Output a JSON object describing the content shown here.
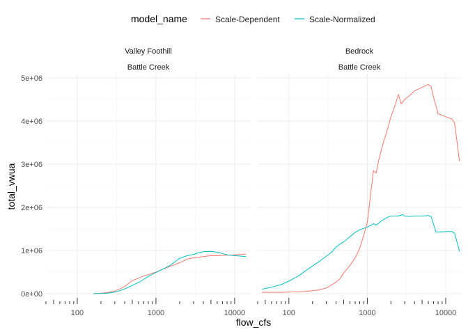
{
  "chart_data": {
    "type": "line",
    "x_scale": "log10",
    "xlabel": "flow_cfs",
    "ylabel": "total_vwua",
    "xlim": [
      40,
      16000
    ],
    "ylim": [
      0,
      5000000
    ],
    "x_ticks": [
      100,
      1000,
      10000
    ],
    "x_tick_labels": [
      "100",
      "1000",
      "10000"
    ],
    "y_ticks": [
      0,
      1000000,
      2000000,
      3000000,
      4000000,
      5000000
    ],
    "y_tick_labels": [
      "0e+00",
      "1e+06",
      "2e+06",
      "3e+06",
      "4e+06",
      "5e+06"
    ],
    "grid": true,
    "legend": {
      "title": "model_name",
      "position": "top",
      "entries": [
        {
          "label": "Scale-Dependent",
          "color": "#F8766D"
        },
        {
          "label": "Scale-Normalized",
          "color": "#00BFC4"
        }
      ]
    },
    "panels": [
      {
        "strip_top": "Valley Foothill",
        "strip_bottom": "Battle Creek",
        "series": [
          {
            "name": "Scale-Dependent",
            "color": "#F8766D",
            "points": [
              [
                160,
                0
              ],
              [
                200,
                10000
              ],
              [
                250,
                30000
              ],
              [
                300,
                60000
              ],
              [
                350,
                110000
              ],
              [
                400,
                170000
              ],
              [
                450,
                240000
              ],
              [
                500,
                300000
              ],
              [
                600,
                360000
              ],
              [
                700,
                410000
              ],
              [
                800,
                440000
              ],
              [
                1000,
                500000
              ],
              [
                1200,
                560000
              ],
              [
                1500,
                630000
              ],
              [
                2000,
                720000
              ],
              [
                2500,
                800000
              ],
              [
                3000,
                830000
              ],
              [
                4000,
                860000
              ],
              [
                5000,
                880000
              ],
              [
                6000,
                880000
              ],
              [
                8000,
                890000
              ],
              [
                10000,
                900000
              ],
              [
                12000,
                910000
              ],
              [
                14000,
                920000
              ]
            ]
          },
          {
            "name": "Scale-Normalized",
            "color": "#00BFC4",
            "points": [
              [
                160,
                0
              ],
              [
                200,
                5000
              ],
              [
                250,
                15000
              ],
              [
                300,
                35000
              ],
              [
                350,
                70000
              ],
              [
                400,
                110000
              ],
              [
                450,
                150000
              ],
              [
                500,
                190000
              ],
              [
                600,
                260000
              ],
              [
                700,
                330000
              ],
              [
                800,
                400000
              ],
              [
                1000,
                490000
              ],
              [
                1200,
                560000
              ],
              [
                1500,
                650000
              ],
              [
                2000,
                820000
              ],
              [
                2500,
                880000
              ],
              [
                3000,
                910000
              ],
              [
                3500,
                950000
              ],
              [
                4000,
                975000
              ],
              [
                5000,
                980000
              ],
              [
                6000,
                960000
              ],
              [
                7000,
                930000
              ],
              [
                8000,
                900000
              ],
              [
                10000,
                880000
              ],
              [
                12000,
                870000
              ],
              [
                14000,
                860000
              ]
            ]
          }
        ]
      },
      {
        "strip_top": "Bedrock",
        "strip_bottom": "Battle Creek",
        "series": [
          {
            "name": "Scale-Dependent",
            "color": "#F8766D",
            "points": [
              [
                45,
                30000
              ],
              [
                60,
                30000
              ],
              [
                80,
                30000
              ],
              [
                100,
                35000
              ],
              [
                130,
                40000
              ],
              [
                160,
                50000
              ],
              [
                200,
                70000
              ],
              [
                250,
                90000
              ],
              [
                300,
                130000
              ],
              [
                350,
                200000
              ],
              [
                400,
                270000
              ],
              [
                450,
                350000
              ],
              [
                500,
                480000
              ],
              [
                600,
                650000
              ],
              [
                700,
                830000
              ],
              [
                800,
                1050000
              ],
              [
                900,
                1350000
              ],
              [
                1000,
                1650000
              ],
              [
                1100,
                2300000
              ],
              [
                1200,
                2850000
              ],
              [
                1300,
                2800000
              ],
              [
                1400,
                3100000
              ],
              [
                1600,
                3500000
              ],
              [
                1800,
                3800000
              ],
              [
                2000,
                4100000
              ],
              [
                2200,
                4300000
              ],
              [
                2500,
                4620000
              ],
              [
                2700,
                4400000
              ],
              [
                3000,
                4500000
              ],
              [
                3500,
                4600000
              ],
              [
                4000,
                4700000
              ],
              [
                5000,
                4780000
              ],
              [
                6000,
                4850000
              ],
              [
                6500,
                4800000
              ],
              [
                7000,
                4550000
              ],
              [
                8000,
                4170000
              ],
              [
                10000,
                4100000
              ],
              [
                12000,
                4050000
              ],
              [
                13000,
                3950000
              ],
              [
                15000,
                3070000
              ]
            ]
          },
          {
            "name": "Scale-Normalized",
            "color": "#00BFC4",
            "points": [
              [
                45,
                100000
              ],
              [
                60,
                150000
              ],
              [
                80,
                210000
              ],
              [
                100,
                290000
              ],
              [
                130,
                400000
              ],
              [
                160,
                520000
              ],
              [
                200,
                640000
              ],
              [
                250,
                760000
              ],
              [
                300,
                870000
              ],
              [
                350,
                960000
              ],
              [
                400,
                1080000
              ],
              [
                450,
                1150000
              ],
              [
                500,
                1200000
              ],
              [
                600,
                1320000
              ],
              [
                700,
                1420000
              ],
              [
                800,
                1480000
              ],
              [
                1000,
                1540000
              ],
              [
                1200,
                1620000
              ],
              [
                1300,
                1590000
              ],
              [
                1500,
                1680000
              ],
              [
                1800,
                1770000
              ],
              [
                2000,
                1800000
              ],
              [
                2500,
                1800000
              ],
              [
                2800,
                1830000
              ],
              [
                3000,
                1800000
              ],
              [
                3500,
                1790000
              ],
              [
                4000,
                1800000
              ],
              [
                5000,
                1800000
              ],
              [
                6000,
                1810000
              ],
              [
                6500,
                1790000
              ],
              [
                7000,
                1600000
              ],
              [
                7500,
                1430000
              ],
              [
                9000,
                1430000
              ],
              [
                10000,
                1440000
              ],
              [
                12000,
                1440000
              ],
              [
                13000,
                1400000
              ],
              [
                15000,
                980000
              ]
            ]
          }
        ]
      }
    ]
  }
}
